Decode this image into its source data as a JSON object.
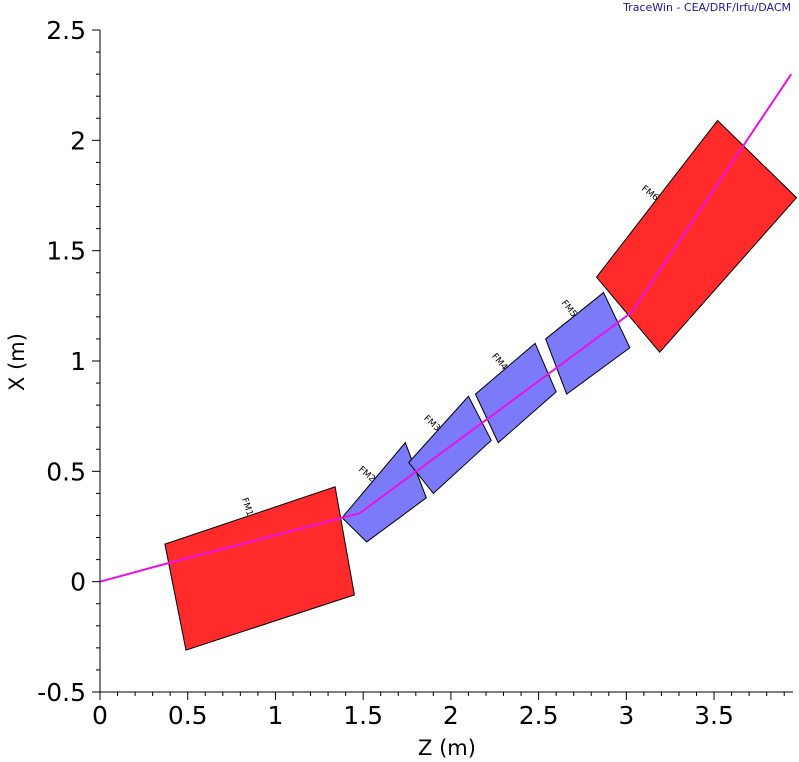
{
  "app": {
    "credit": "TraceWin - CEA/DRF/Irfu/DACM"
  },
  "colors": {
    "dipole": "#ff2a2a",
    "quadrupole": "#7b7bfa",
    "beam": "#e614e6",
    "axis": "#000000"
  },
  "chart_data": {
    "type": "diagram",
    "xlabel": "Z (m)",
    "ylabel": "X (m)",
    "xlim": [
      0,
      3.95
    ],
    "ylim": [
      -0.5,
      2.5
    ],
    "xticks": [
      "0",
      "0.5",
      "1",
      "1.5",
      "2",
      "2.5",
      "3",
      "3.5"
    ],
    "yticks": [
      "-0.5",
      "0",
      "0.5",
      "1",
      "1.5",
      "2",
      "2.5"
    ],
    "xtick_values": [
      0,
      0.5,
      1,
      1.5,
      2,
      2.5,
      3,
      3.5
    ],
    "ytick_values": [
      -0.5,
      0,
      0.5,
      1,
      1.5,
      2,
      2.5
    ],
    "beam_path": [
      [
        0,
        0
      ],
      [
        0.37,
        0.08
      ],
      [
        1.48,
        0.31
      ],
      [
        3.03,
        1.22
      ],
      [
        3.94,
        2.3
      ]
    ],
    "elements": [
      {
        "label": "FM1",
        "kind": "dipole",
        "corners": [
          [
            0.37,
            0.17
          ],
          [
            1.34,
            0.43
          ],
          [
            1.45,
            -0.06
          ],
          [
            0.49,
            -0.31
          ]
        ]
      },
      {
        "label": "FM2",
        "kind": "quadrupole",
        "corners": [
          [
            1.38,
            0.29
          ],
          [
            1.74,
            0.63
          ],
          [
            1.86,
            0.38
          ],
          [
            1.52,
            0.18
          ]
        ]
      },
      {
        "label": "FM3",
        "kind": "quadrupole",
        "corners": [
          [
            1.76,
            0.54
          ],
          [
            2.1,
            0.84
          ],
          [
            2.23,
            0.64
          ],
          [
            1.9,
            0.4
          ]
        ]
      },
      {
        "label": "FM4",
        "kind": "quadrupole",
        "corners": [
          [
            2.14,
            0.85
          ],
          [
            2.48,
            1.08
          ],
          [
            2.6,
            0.86
          ],
          [
            2.27,
            0.63
          ]
        ]
      },
      {
        "label": "FM5",
        "kind": "quadrupole",
        "corners": [
          [
            2.54,
            1.1
          ],
          [
            2.87,
            1.31
          ],
          [
            3.02,
            1.06
          ],
          [
            2.66,
            0.85
          ]
        ]
      },
      {
        "label": "FM6",
        "kind": "dipole",
        "corners": [
          [
            2.83,
            1.38
          ],
          [
            3.52,
            2.09
          ],
          [
            3.97,
            1.74
          ],
          [
            3.19,
            1.04
          ]
        ]
      }
    ]
  }
}
